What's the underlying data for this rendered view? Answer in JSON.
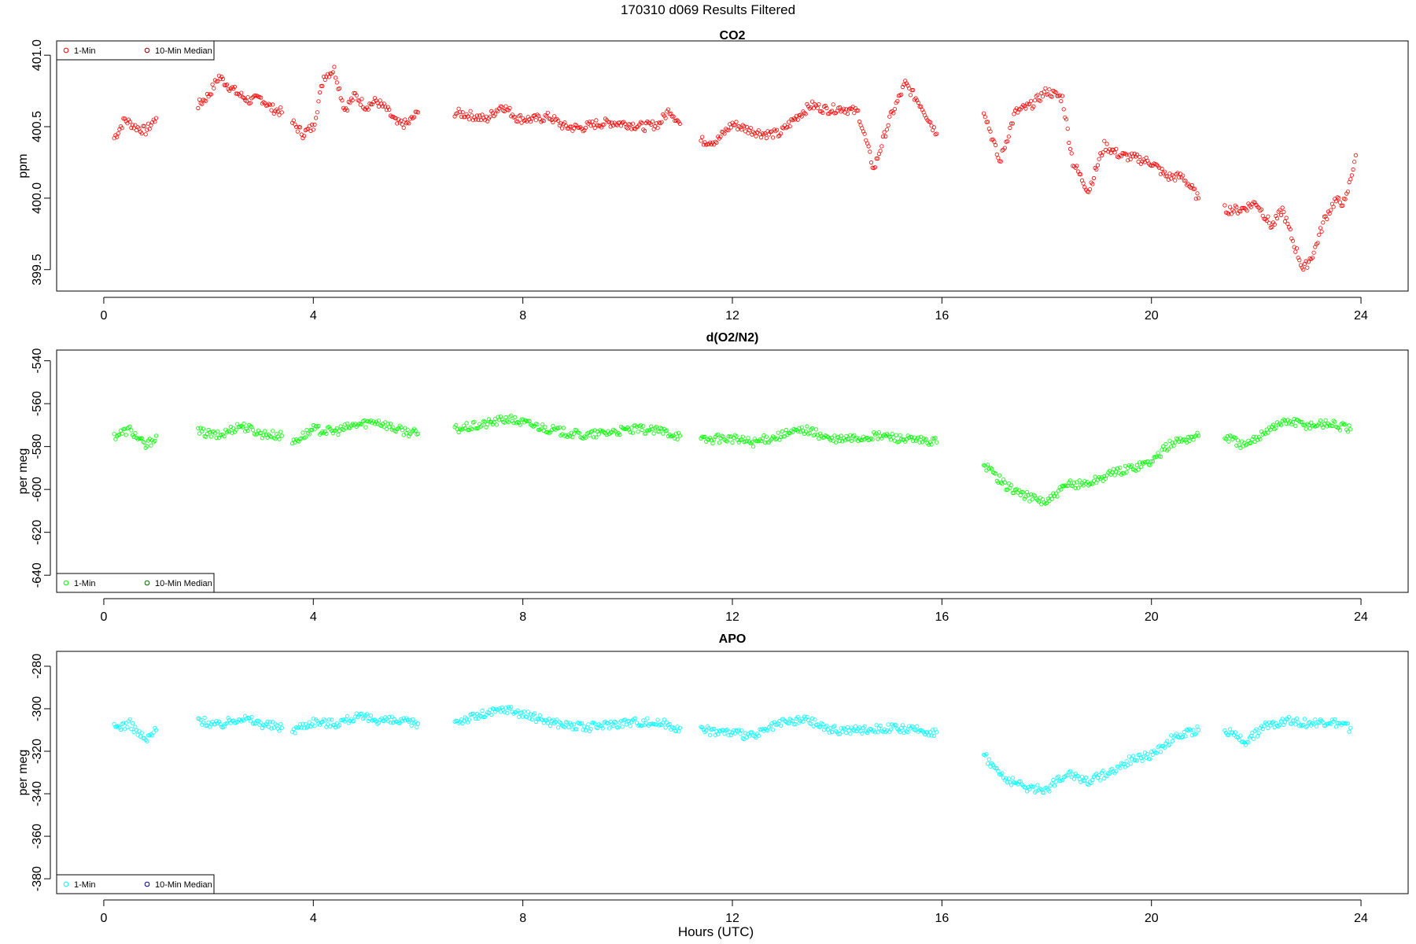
{
  "page_title": "170310   d069   Results Filtered",
  "xlabel": "Hours (UTC)",
  "x_ticks": [
    0,
    4,
    8,
    12,
    16,
    20,
    24
  ],
  "chart_data": [
    {
      "type": "scatter",
      "title": "CO2",
      "ylabel": "ppm",
      "xlim": [
        -0.9,
        24.9
      ],
      "ylim": [
        399.35,
        401.1
      ],
      "y_ticks": [
        399.5,
        400.0,
        400.5,
        401.0
      ],
      "y_tick_labels": [
        "399.5",
        "400.0",
        "400.5",
        "401.0"
      ],
      "legend": {
        "position": "top-left",
        "entries": [
          "1-Min",
          "10-Min Median"
        ]
      },
      "series": [
        {
          "name": "1-Min",
          "color": "#ff0000",
          "segments": [
            {
              "x": [
                0.2,
                0.4,
                0.6,
                0.8,
                1.0
              ],
              "y": [
                400.42,
                400.55,
                400.5,
                400.47,
                400.56
              ]
            },
            {
              "x": [
                1.8,
                2.0,
                2.2,
                2.4,
                2.6,
                2.8,
                3.0,
                3.2,
                3.4
              ],
              "y": [
                400.65,
                400.72,
                400.85,
                400.78,
                400.72,
                400.68,
                400.7,
                400.63,
                400.6
              ]
            },
            {
              "x": [
                3.6,
                3.8,
                4.0,
                4.2,
                4.4,
                4.6,
                4.8,
                5.0,
                5.2,
                5.4,
                5.6,
                5.8,
                6.0
              ],
              "y": [
                400.53,
                400.45,
                400.5,
                400.85,
                400.9,
                400.62,
                400.72,
                400.64,
                400.68,
                400.62,
                400.52,
                400.52,
                400.6
              ]
            },
            {
              "x": [
                6.7,
                7.0,
                7.3,
                7.6,
                7.9,
                8.2,
                8.5,
                8.8,
                9.1,
                9.4,
                9.7,
                10.0,
                10.3,
                10.6,
                10.8,
                11.0
              ],
              "y": [
                400.6,
                400.58,
                400.55,
                400.65,
                400.56,
                400.55,
                400.57,
                400.5,
                400.49,
                400.52,
                400.53,
                400.52,
                400.5,
                400.52,
                400.62,
                400.52
              ]
            },
            {
              "x": [
                11.4,
                11.7,
                12.0,
                12.3,
                12.6,
                12.9,
                13.2,
                13.5,
                13.8,
                14.1,
                14.4,
                14.7,
                15.0,
                15.3,
                15.6,
                15.9
              ],
              "y": [
                400.4,
                400.4,
                400.52,
                400.48,
                400.45,
                400.45,
                400.56,
                400.65,
                400.62,
                400.63,
                400.6,
                400.2,
                400.55,
                400.8,
                400.65,
                400.45
              ]
            },
            {
              "x": [
                16.8,
                17.1,
                17.4,
                17.7,
                18.0,
                18.3,
                18.5,
                18.8,
                19.1,
                19.4,
                19.7,
                20.0,
                20.3,
                20.6,
                20.9
              ],
              "y": [
                400.62,
                400.25,
                400.6,
                400.65,
                400.75,
                400.7,
                400.25,
                400.05,
                400.37,
                400.3,
                400.28,
                400.25,
                400.15,
                400.15,
                400.0
              ]
            },
            {
              "x": [
                21.4,
                21.7,
                22.0,
                22.3,
                22.5,
                22.7,
                22.9,
                23.1,
                23.3,
                23.5,
                23.7,
                23.9
              ],
              "y": [
                399.92,
                399.92,
                399.97,
                399.8,
                399.92,
                399.7,
                399.5,
                399.62,
                399.85,
                399.98,
                399.97,
                400.3
              ]
            }
          ]
        },
        {
          "name": "10-Min Median",
          "color": "#8b0000",
          "segments": []
        }
      ]
    },
    {
      "type": "scatter",
      "title": "d(O2/N2)",
      "ylabel": "per meg",
      "xlim": [
        -0.9,
        24.9
      ],
      "ylim": [
        -648,
        -535
      ],
      "y_ticks": [
        -640,
        -620,
        -600,
        -580,
        -560,
        -540
      ],
      "y_tick_labels": [
        "-640",
        "-620",
        "-600",
        "-580",
        "-560",
        "-540"
      ],
      "legend": {
        "position": "bottom-left",
        "entries": [
          "1-Min",
          "10-Min Median"
        ]
      },
      "series": [
        {
          "name": "1-Min",
          "color": "#00ff00",
          "segments": [
            {
              "x": [
                0.2,
                0.5,
                0.8,
                1.0
              ],
              "y": [
                -575,
                -572,
                -580,
                -575
              ]
            },
            {
              "x": [
                1.8,
                2.2,
                2.6,
                3.0,
                3.4
              ],
              "y": [
                -573,
                -575,
                -570,
                -574,
                -575
              ]
            },
            {
              "x": [
                3.6,
                4.0,
                4.4,
                4.8,
                5.2,
                5.6,
                6.0
              ],
              "y": [
                -578,
                -572,
                -573,
                -570,
                -568,
                -572,
                -574
              ]
            },
            {
              "x": [
                6.7,
                7.2,
                7.7,
                8.2,
                8.7,
                9.2,
                9.7,
                10.2,
                10.7,
                11.0
              ],
              "y": [
                -572,
                -570,
                -567,
                -570,
                -573,
                -575,
                -573,
                -572,
                -573,
                -575
              ]
            },
            {
              "x": [
                11.4,
                11.9,
                12.4,
                12.9,
                13.4,
                13.9,
                14.4,
                14.9,
                15.4,
                15.9
              ],
              "y": [
                -577,
                -576,
                -578,
                -575,
                -572,
                -577,
                -576,
                -575,
                -577,
                -578
              ]
            },
            {
              "x": [
                16.8,
                17.2,
                17.6,
                18.0,
                18.4,
                18.8,
                19.2,
                19.6,
                20.0,
                20.4,
                20.9
              ],
              "y": [
                -588,
                -598,
                -603,
                -606,
                -598,
                -597,
                -593,
                -590,
                -587,
                -578,
                -575
              ]
            },
            {
              "x": [
                21.4,
                21.8,
                22.2,
                22.6,
                23.0,
                23.4,
                23.8
              ],
              "y": [
                -575,
                -580,
                -572,
                -568,
                -570,
                -569,
                -572
              ]
            }
          ]
        },
        {
          "name": "10-Min Median",
          "color": "#006400",
          "segments": []
        }
      ]
    },
    {
      "type": "scatter",
      "title": "APO",
      "ylabel": "per meg",
      "xlim": [
        -0.9,
        24.9
      ],
      "ylim": [
        -387,
        -273
      ],
      "y_ticks": [
        -380,
        -360,
        -340,
        -320,
        -300,
        -280
      ],
      "y_tick_labels": [
        "-380",
        "-360",
        "-340",
        "-320",
        "-300",
        "-280"
      ],
      "legend": {
        "position": "bottom-left",
        "entries": [
          "1-Min",
          "10-Min Median"
        ]
      },
      "series": [
        {
          "name": "1-Min",
          "color": "#00ffff",
          "segments": [
            {
              "x": [
                0.2,
                0.5,
                0.8,
                1.0
              ],
              "y": [
                -309,
                -307,
                -315,
                -310
              ]
            },
            {
              "x": [
                1.8,
                2.2,
                2.6,
                3.0,
                3.4
              ],
              "y": [
                -305,
                -308,
                -304,
                -307,
                -309
              ]
            },
            {
              "x": [
                3.6,
                4.0,
                4.4,
                4.8,
                5.2,
                5.6,
                6.0
              ],
              "y": [
                -310,
                -306,
                -307,
                -304,
                -305,
                -306,
                -307
              ]
            },
            {
              "x": [
                6.7,
                7.2,
                7.7,
                8.2,
                8.7,
                9.2,
                9.7,
                10.2,
                10.7,
                11.0
              ],
              "y": [
                -306,
                -303,
                -300,
                -304,
                -307,
                -309,
                -307,
                -306,
                -307,
                -309
              ]
            },
            {
              "x": [
                11.4,
                11.9,
                12.4,
                12.9,
                13.4,
                13.9,
                14.4,
                14.9,
                15.4,
                15.9
              ],
              "y": [
                -310,
                -311,
                -313,
                -307,
                -305,
                -310,
                -310,
                -309,
                -310,
                -311
              ]
            },
            {
              "x": [
                16.8,
                17.2,
                17.6,
                18.0,
                18.4,
                18.8,
                19.2,
                19.6,
                20.0,
                20.4,
                20.9
              ],
              "y": [
                -322,
                -333,
                -337,
                -338,
                -330,
                -334,
                -330,
                -324,
                -322,
                -314,
                -310
              ]
            },
            {
              "x": [
                21.4,
                21.8,
                22.2,
                22.6,
                23.0,
                23.4,
                23.8
              ],
              "y": [
                -310,
                -315,
                -308,
                -305,
                -307,
                -306,
                -309
              ]
            }
          ]
        },
        {
          "name": "10-Min Median",
          "color": "#00008b",
          "segments": []
        }
      ]
    }
  ]
}
